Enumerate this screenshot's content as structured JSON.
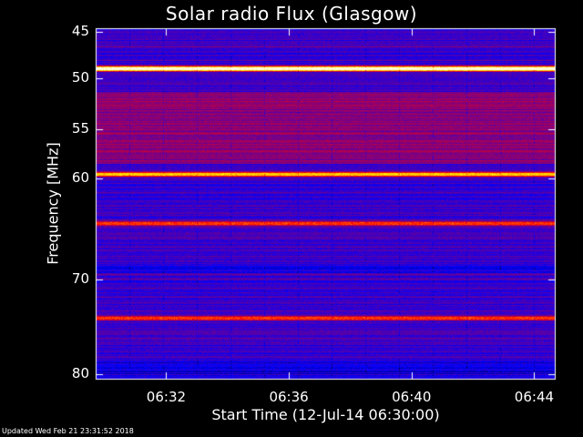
{
  "chart_data": {
    "type": "heatmap",
    "title": "Solar radio Flux (Glasgow)",
    "xlabel": "Start Time (12-Jul-14 06:30:00)",
    "ylabel": "Frequency [MHz]",
    "x_ticks": [
      "06:32",
      "06:36",
      "06:40",
      "06:44"
    ],
    "x_tick_minutes": [
      2,
      6,
      10,
      14
    ],
    "x_range_minutes": [
      -0.3,
      14.7
    ],
    "y_ticks": [
      45,
      50,
      55,
      60,
      70,
      80
    ],
    "y_range": [
      44.2,
      80.5
    ],
    "y_scale": "nonlinear",
    "colormap": [
      "#000000",
      "#0000ff",
      "#7f0080",
      "#ff0000",
      "#ffff00",
      "#ffffff"
    ],
    "bright_bands_mhz": [
      {
        "freq": 48.9,
        "level": "saturated"
      },
      {
        "freq": 59.5,
        "level": "high"
      },
      {
        "freq": 64.4,
        "level": "medium"
      },
      {
        "freq": 74.0,
        "level": "medium"
      }
    ]
  },
  "footer": "Updated Wed Feb 21 23:31:52 2018"
}
